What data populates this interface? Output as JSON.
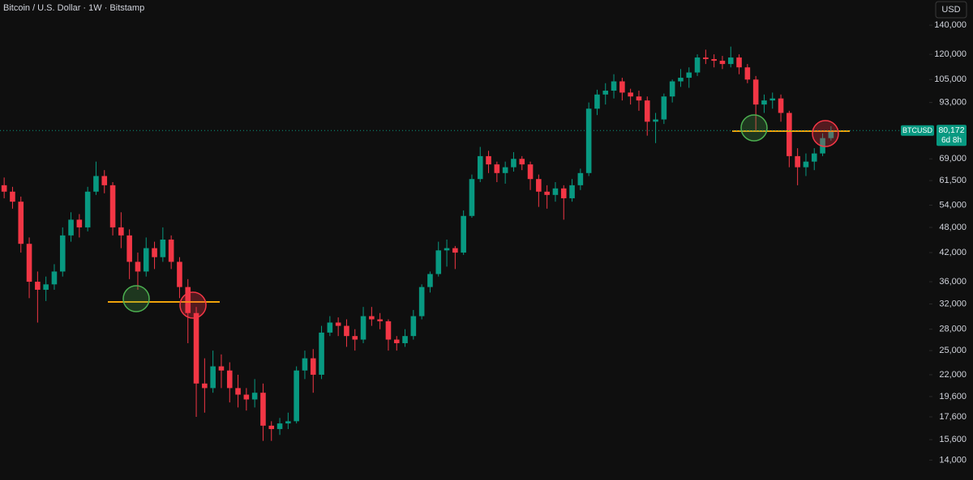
{
  "chart_data": {
    "type": "candlestick",
    "title": "Bitcoin / U.S. Dollar · 1W · Bitstamp",
    "currency": "USD",
    "symbol": "BTCUSD",
    "countdown": "6d 8h",
    "last_price": {
      "value": 80172,
      "label": "80,172"
    },
    "up_color": "#089981",
    "down_color": "#f23645",
    "log_scale": true,
    "ylim": [
      12600,
      160000
    ],
    "yticks": [
      {
        "value": 140000,
        "label": "140,000"
      },
      {
        "value": 120000,
        "label": "120,000"
      },
      {
        "value": 105000,
        "label": "105,000"
      },
      {
        "value": 93000,
        "label": "93,000"
      },
      {
        "value": 69000,
        "label": "69,000"
      },
      {
        "value": 61500,
        "label": "61,500"
      },
      {
        "value": 54000,
        "label": "54,000"
      },
      {
        "value": 48000,
        "label": "48,000"
      },
      {
        "value": 42000,
        "label": "42,000"
      },
      {
        "value": 36000,
        "label": "36,000"
      },
      {
        "value": 32000,
        "label": "32,000"
      },
      {
        "value": 28000,
        "label": "28,000"
      },
      {
        "value": 25000,
        "label": "25,000"
      },
      {
        "value": 22000,
        "label": "22,000"
      },
      {
        "value": 19600,
        "label": "19,600"
      },
      {
        "value": 17600,
        "label": "17,600"
      },
      {
        "value": 15600,
        "label": "15,600"
      },
      {
        "value": 14000,
        "label": "14,000"
      }
    ],
    "open": [
      60000,
      58000,
      55000,
      44000,
      36000,
      34500,
      35500,
      38000,
      46000,
      50000,
      48000,
      58000,
      63000,
      60000,
      48000,
      46000,
      40000,
      38000,
      43000,
      41000,
      45000,
      40000,
      35000,
      30500,
      21000,
      20500,
      23000,
      22500,
      20500,
      19800,
      19300,
      20000,
      16800,
      16500,
      17000,
      17200,
      22500,
      24000,
      22000,
      27500,
      29000,
      28500,
      27000,
      26500,
      30000,
      29500,
      29200,
      26500,
      26000,
      27000,
      30000,
      35000,
      37500,
      42500,
      43000,
      42000,
      51000,
      62000,
      70000,
      67000,
      64000,
      66000,
      69000,
      67000,
      62000,
      58000,
      57000,
      59000,
      56000,
      60000,
      64000,
      90000,
      97000,
      99000,
      104000,
      98000,
      96000,
      94000,
      84000,
      85000,
      96000,
      104000,
      106000,
      109000,
      118000,
      117000,
      116000,
      114000,
      118000,
      112000,
      105000,
      92000,
      94000,
      95000,
      88000,
      70000,
      66000,
      68000,
      71000,
      77000
    ],
    "high": [
      62500,
      59500,
      56500,
      45500,
      38000,
      37000,
      39500,
      48000,
      52000,
      51500,
      59500,
      68000,
      65000,
      61000,
      52000,
      47500,
      42000,
      45500,
      44500,
      48000,
      46000,
      41000,
      36500,
      31500,
      24000,
      25000,
      24500,
      23500,
      22000,
      20500,
      21500,
      21000,
      17200,
      17500,
      18000,
      23000,
      25000,
      25200,
      28500,
      30000,
      29800,
      29500,
      28000,
      31500,
      31500,
      30500,
      29500,
      27000,
      28000,
      31000,
      35500,
      38000,
      44500,
      45000,
      43500,
      52500,
      63500,
      73500,
      72000,
      68000,
      68000,
      71500,
      70000,
      68000,
      63500,
      60000,
      61000,
      60000,
      62000,
      65500,
      93000,
      99500,
      103000,
      108000,
      106000,
      100000,
      99000,
      96000,
      88000,
      97500,
      105000,
      111000,
      112000,
      120000,
      123000,
      120000,
      119000,
      125000,
      120000,
      114000,
      107000,
      97000,
      98000,
      97000,
      89000,
      73000,
      71000,
      73000,
      79000,
      82000
    ],
    "low": [
      56000,
      53000,
      42000,
      33000,
      29000,
      32500,
      34500,
      37000,
      44500,
      45500,
      47000,
      57000,
      57500,
      46000,
      43000,
      36500,
      34500,
      37000,
      38500,
      40000,
      38500,
      33000,
      26000,
      17600,
      18000,
      20000,
      20500,
      19000,
      18500,
      18200,
      18500,
      15500,
      15500,
      16000,
      16500,
      17000,
      21500,
      20000,
      21500,
      27000,
      27000,
      25500,
      25000,
      26000,
      28500,
      28000,
      25000,
      25000,
      25500,
      26500,
      29500,
      34000,
      37000,
      39000,
      38500,
      41500,
      50500,
      61000,
      64000,
      61000,
      60500,
      64500,
      65000,
      58500,
      53500,
      53000,
      55000,
      50000,
      55000,
      58500,
      63000,
      87000,
      92000,
      95000,
      94000,
      92000,
      89000,
      78000,
      75000,
      83000,
      93000,
      101000,
      100500,
      107000,
      114000,
      112000,
      111000,
      112000,
      108000,
      103000,
      80000,
      88000,
      90000,
      84000,
      66000,
      60000,
      63000,
      65000,
      70000,
      76000
    ],
    "close": [
      58000,
      55000,
      44000,
      36000,
      34500,
      35500,
      38000,
      46000,
      50000,
      48000,
      58000,
      63000,
      60000,
      48000,
      46000,
      40000,
      38000,
      43000,
      41000,
      45000,
      40000,
      35000,
      30500,
      21000,
      20500,
      23000,
      22500,
      20500,
      19800,
      19300,
      20000,
      16800,
      16500,
      17000,
      17200,
      22500,
      24000,
      22000,
      27500,
      29000,
      28500,
      27000,
      26500,
      30000,
      29500,
      29200,
      26500,
      26000,
      27000,
      30000,
      35000,
      37500,
      42500,
      43000,
      42000,
      51000,
      62000,
      70000,
      67000,
      64000,
      66000,
      69000,
      67000,
      62000,
      58000,
      57000,
      59000,
      56000,
      60000,
      64000,
      90000,
      97000,
      99000,
      104000,
      98000,
      96000,
      94000,
      84000,
      85000,
      96000,
      104000,
      106000,
      109000,
      118000,
      117000,
      116000,
      114000,
      118000,
      112000,
      105000,
      92000,
      94000,
      95000,
      88000,
      70000,
      66000,
      68000,
      71000,
      77000,
      80172
    ]
  }
}
